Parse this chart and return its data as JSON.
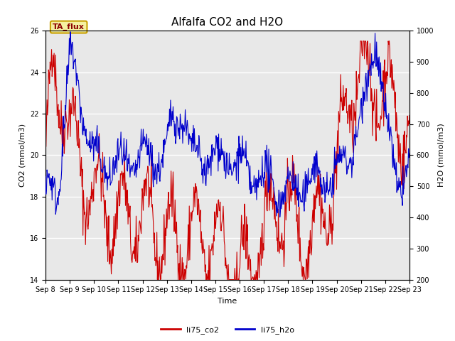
{
  "title": "Alfalfa CO2 and H2O",
  "xlabel": "Time",
  "ylabel_left": "CO2 (mmol/m3)",
  "ylabel_right": "H2O (mmol/m3)",
  "ylim_left": [
    14,
    26
  ],
  "ylim_right": [
    200,
    1000
  ],
  "xtick_labels": [
    "Sep 8",
    "Sep 9",
    "Sep 10",
    "Sep 11",
    "Sep 12",
    "Sep 13",
    "Sep 14",
    "Sep 15",
    "Sep 16",
    "Sep 17",
    "Sep 18",
    "Sep 19",
    "Sep 20",
    "Sep 21",
    "Sep 22",
    "Sep 23"
  ],
  "annotation_text": "TA_flux",
  "annotation_bg": "#f5f0a0",
  "annotation_border": "#c8a000",
  "color_co2": "#cc0000",
  "color_h2o": "#0000cc",
  "legend_labels": [
    "li75_co2",
    "li75_h2o"
  ],
  "bg_color": "#e8e8e8",
  "grid_color": "white",
  "title_fontsize": 11,
  "axis_fontsize": 8,
  "tick_fontsize": 7,
  "linewidth": 0.8
}
